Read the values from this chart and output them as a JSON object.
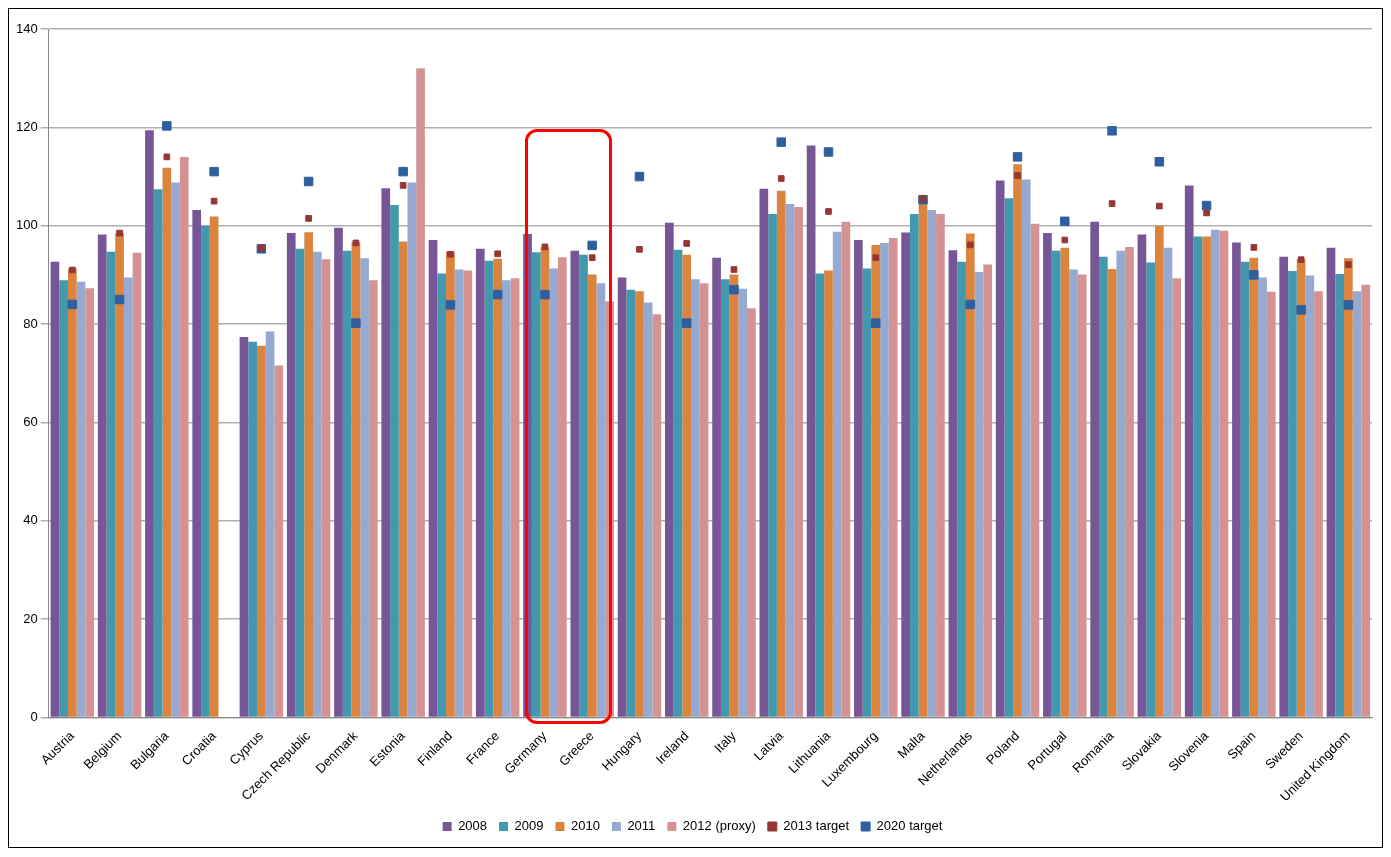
{
  "chart_data": {
    "type": "bar",
    "categories": [
      "Austria",
      "Belgium",
      "Bulgaria",
      "Croatia",
      "Cyprus",
      "Czech Republic",
      "Denmark",
      "Estonia",
      "Finland",
      "France",
      "Germany",
      "Greece",
      "Hungary",
      "Ireland",
      "Italy",
      "Latvia",
      "Lithuania",
      "Luxembourg",
      "Malta",
      "Netherlands",
      "Poland",
      "Portugal",
      "Romania",
      "Slovakia",
      "Slovenia",
      "Spain",
      "Sweden",
      "United Kingdom"
    ],
    "series": [
      {
        "name": "2008",
        "color": "#765696",
        "values": [
          92.7,
          98.2,
          119.4,
          103.2,
          77.4,
          98.5,
          99.6,
          107.6,
          97.1,
          95.3,
          98.3,
          94.9,
          89.5,
          100.6,
          93.5,
          107.5,
          116.3,
          97.1,
          98.6,
          95.0,
          109.2,
          98.5,
          100.8,
          98.2,
          108.2,
          96.6,
          93.7,
          95.5
        ]
      },
      {
        "name": "2009",
        "color": "#4299ae",
        "values": [
          88.9,
          94.7,
          107.4,
          100.0,
          76.4,
          95.3,
          94.9,
          104.2,
          90.3,
          92.9,
          94.6,
          94.1,
          87.0,
          95.1,
          89.1,
          102.4,
          90.3,
          91.3,
          102.4,
          92.7,
          105.6,
          94.9,
          93.7,
          92.5,
          97.8,
          92.7,
          90.8,
          90.2
        ]
      },
      {
        "name": "2010",
        "color": "#dc843e",
        "values": [
          91.3,
          98.5,
          111.8,
          101.9,
          75.6,
          98.7,
          96.7,
          96.8,
          94.7,
          93.3,
          95.6,
          90.1,
          86.7,
          94.1,
          90.1,
          107.1,
          90.9,
          96.1,
          105.6,
          98.4,
          112.5,
          95.5,
          91.2,
          100.0,
          97.8,
          93.5,
          93.2,
          93.4
        ]
      },
      {
        "name": "2011",
        "color": "#95a9d1",
        "values": [
          88.6,
          89.5,
          108.8,
          null,
          78.5,
          94.7,
          93.4,
          108.8,
          91.1,
          88.9,
          91.3,
          88.3,
          84.4,
          89.1,
          87.2,
          104.4,
          98.8,
          96.5,
          103.2,
          90.6,
          109.4,
          91.1,
          94.9,
          95.5,
          99.2,
          89.5,
          89.9,
          86.7
        ]
      },
      {
        "name": "2012 (proxy)",
        "color": "#d49392",
        "values": [
          87.3,
          94.5,
          114.0,
          null,
          71.6,
          93.2,
          88.9,
          132.0,
          90.9,
          89.3,
          93.6,
          84.6,
          82.0,
          88.3,
          83.2,
          103.8,
          100.8,
          97.5,
          102.4,
          92.1,
          100.4,
          90.1,
          95.7,
          89.3,
          99.0,
          86.6,
          86.7,
          88.0
        ]
      },
      {
        "name": "2013 target",
        "type": "scatter",
        "marker": "square",
        "color": "#953735",
        "x": [
          "Austria",
          "Belgium",
          "Bulgaria",
          "Croatia",
          "Cyprus",
          "Czech Republic",
          "Denmark",
          "Estonia",
          "Finland",
          "France",
          "Germany",
          "Greece",
          "Hungary",
          "Ireland",
          "Italy",
          "Latvia",
          "Lithuania",
          "Luxembourg",
          "Malta",
          "Netherlands",
          "Poland",
          "Portugal",
          "Romania",
          "Slovakia",
          "Slovenia",
          "Spain",
          "Sweden",
          "United Kingdom"
        ],
        "values": [
          91.0,
          98.5,
          114.0,
          105.0,
          95.5,
          101.5,
          96.5,
          108.2,
          94.2,
          94.3,
          95.7,
          93.5,
          95.2,
          96.4,
          91.1,
          109.6,
          102.9,
          93.5,
          105.5,
          96.1,
          110.2,
          97.1,
          104.5,
          104.0,
          102.6,
          95.6,
          93.1,
          92.1
        ]
      },
      {
        "name": "2020 target",
        "type": "scatter",
        "marker": "square",
        "color": "#2e5f9e",
        "x": [
          "Austria",
          "Belgium",
          "Bulgaria",
          "Croatia",
          "Cyprus",
          "Czech Republic",
          "Denmark",
          "Estonia",
          "Finland",
          "France",
          "Germany",
          "Greece",
          "Hungary",
          "Ireland",
          "Italy",
          "Latvia",
          "Lithuania",
          "Luxembourg",
          "Malta",
          "Netherlands",
          "Poland",
          "Portugal",
          "Romania",
          "Slovakia",
          "Slovenia",
          "Spain",
          "Sweden",
          "United Kingdom"
        ],
        "values": [
          84.0,
          85.0,
          120.3,
          111.0,
          95.3,
          109.0,
          80.2,
          111.0,
          83.9,
          86.0,
          86.0,
          96.0,
          110.0,
          80.2,
          87.0,
          117.0,
          115.0,
          80.2,
          105.3,
          84.0,
          114.0,
          100.9,
          119.3,
          113.0,
          104.1,
          90.0,
          82.9,
          83.9
        ]
      }
    ],
    "ylim": [
      0,
      140
    ],
    "yticks": [
      0,
      20,
      40,
      60,
      80,
      100,
      120,
      140
    ],
    "grid": "y",
    "legend": "bottom"
  }
}
